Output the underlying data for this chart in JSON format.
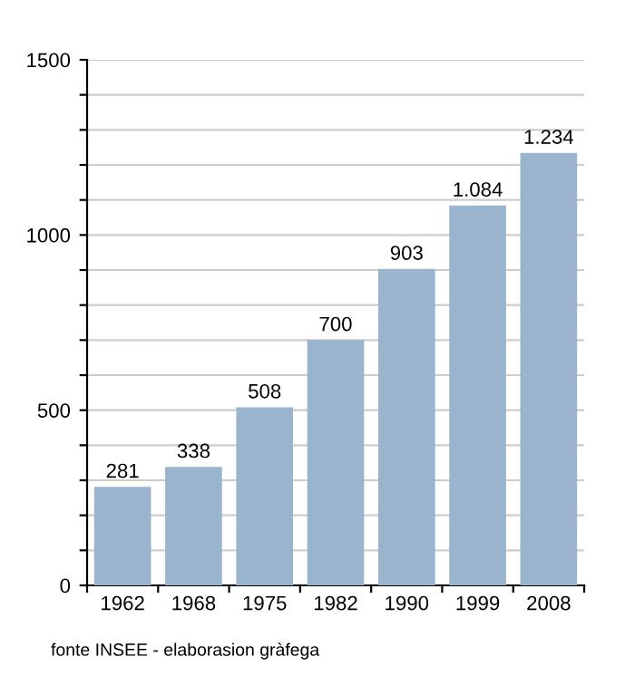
{
  "chart_data": {
    "type": "bar",
    "categories": [
      "1962",
      "1968",
      "1975",
      "1982",
      "1990",
      "1999",
      "2008"
    ],
    "values": [
      281,
      338,
      508,
      700,
      903,
      1084,
      1234
    ],
    "value_labels": [
      "281",
      "338",
      "508",
      "700",
      "903",
      "1.084",
      "1.234"
    ],
    "color": "#9bb4cd",
    "ylim": [
      0,
      1500
    ],
    "yticks": [
      0,
      {
        "value": 100,
        "label": null
      },
      {
        "value": 200,
        "label": null
      },
      {
        "value": 300,
        "label": null
      },
      {
        "value": 400,
        "label": null
      },
      500,
      {
        "value": 600,
        "label": null
      },
      {
        "value": 700,
        "label": null
      },
      {
        "value": 800,
        "label": null
      },
      {
        "value": 900,
        "label": null
      },
      1000,
      {
        "value": 1100,
        "label": null
      },
      {
        "value": 1200,
        "label": null
      },
      {
        "value": 1300,
        "label": null
      },
      {
        "value": 1400,
        "label": null
      },
      1500
    ],
    "grid": "y",
    "annotations": [
      "fonte INSEE - elaborasion gràfega"
    ]
  }
}
